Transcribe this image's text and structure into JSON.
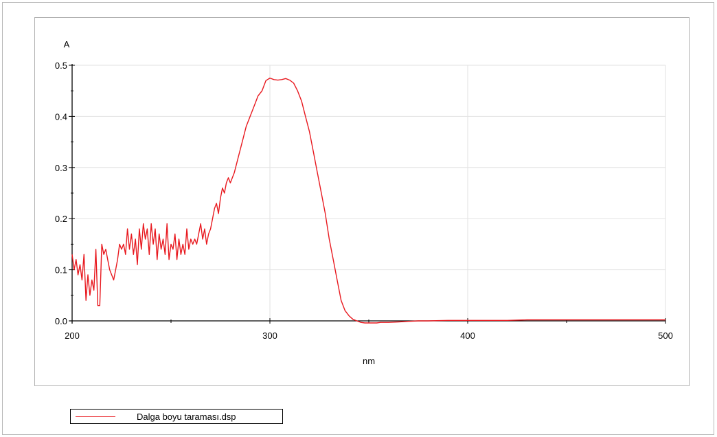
{
  "chart_data": {
    "type": "line",
    "title": "",
    "xlabel": "nm",
    "ylabel": "A",
    "xlim": [
      200,
      500
    ],
    "ylim": [
      0.0,
      0.5
    ],
    "x_ticks": [
      200,
      300,
      400,
      500
    ],
    "x_tick_labels": [
      "200",
      "300",
      "400",
      "500"
    ],
    "y_ticks": [
      0.0,
      0.1,
      0.2,
      0.3,
      0.4,
      0.5
    ],
    "y_tick_labels": [
      "0.0",
      "0.1",
      "0.2",
      "0.3",
      "0.4",
      "0.5"
    ],
    "grid": true,
    "legend_position": "bottom-left",
    "series": [
      {
        "name": "Dalga boyu taraması.dsp",
        "color": "#e8191f",
        "x": [
          200,
          201,
          202,
          203,
          204,
          205,
          206,
          207,
          208,
          209,
          210,
          211,
          212,
          213,
          214,
          215,
          216,
          217,
          218,
          219,
          220,
          221,
          222,
          223,
          224,
          225,
          226,
          227,
          228,
          229,
          230,
          231,
          232,
          233,
          234,
          235,
          236,
          237,
          238,
          239,
          240,
          241,
          242,
          243,
          244,
          245,
          246,
          247,
          248,
          249,
          250,
          251,
          252,
          253,
          254,
          255,
          256,
          257,
          258,
          259,
          260,
          261,
          262,
          263,
          264,
          265,
          266,
          267,
          268,
          269,
          270,
          271,
          272,
          273,
          274,
          275,
          276,
          277,
          278,
          279,
          280,
          282,
          284,
          286,
          288,
          290,
          292,
          294,
          296,
          298,
          300,
          302,
          304,
          306,
          308,
          310,
          312,
          314,
          316,
          318,
          320,
          322,
          324,
          326,
          328,
          330,
          332,
          334,
          336,
          338,
          340,
          342,
          344,
          346,
          348,
          350,
          352,
          354,
          356,
          358,
          360,
          365,
          370,
          375,
          380,
          390,
          400,
          410,
          420,
          430,
          440,
          450,
          460,
          470,
          480,
          490,
          500
        ],
        "y": [
          0.13,
          0.1,
          0.12,
          0.09,
          0.11,
          0.08,
          0.13,
          0.04,
          0.09,
          0.05,
          0.08,
          0.06,
          0.14,
          0.03,
          0.03,
          0.15,
          0.13,
          0.14,
          0.12,
          0.1,
          0.09,
          0.08,
          0.1,
          0.12,
          0.15,
          0.14,
          0.15,
          0.13,
          0.18,
          0.14,
          0.17,
          0.13,
          0.16,
          0.11,
          0.18,
          0.14,
          0.19,
          0.16,
          0.18,
          0.13,
          0.19,
          0.15,
          0.18,
          0.12,
          0.17,
          0.14,
          0.16,
          0.13,
          0.19,
          0.12,
          0.15,
          0.14,
          0.17,
          0.12,
          0.16,
          0.13,
          0.15,
          0.13,
          0.18,
          0.14,
          0.16,
          0.15,
          0.16,
          0.15,
          0.17,
          0.19,
          0.16,
          0.18,
          0.15,
          0.17,
          0.18,
          0.2,
          0.22,
          0.23,
          0.21,
          0.24,
          0.26,
          0.25,
          0.27,
          0.28,
          0.27,
          0.29,
          0.32,
          0.35,
          0.38,
          0.4,
          0.42,
          0.44,
          0.45,
          0.47,
          0.475,
          0.472,
          0.471,
          0.472,
          0.474,
          0.471,
          0.465,
          0.45,
          0.43,
          0.4,
          0.37,
          0.33,
          0.29,
          0.25,
          0.21,
          0.16,
          0.12,
          0.08,
          0.04,
          0.02,
          0.01,
          0.003,
          0.0,
          -0.003,
          -0.004,
          -0.004,
          -0.004,
          -0.004,
          -0.003,
          -0.003,
          -0.003,
          -0.002,
          -0.001,
          0.0,
          0.0,
          0.001,
          0.001,
          0.001,
          0.001,
          0.002,
          0.002,
          0.002,
          0.002,
          0.002,
          0.002,
          0.002,
          0.002
        ]
      }
    ]
  }
}
